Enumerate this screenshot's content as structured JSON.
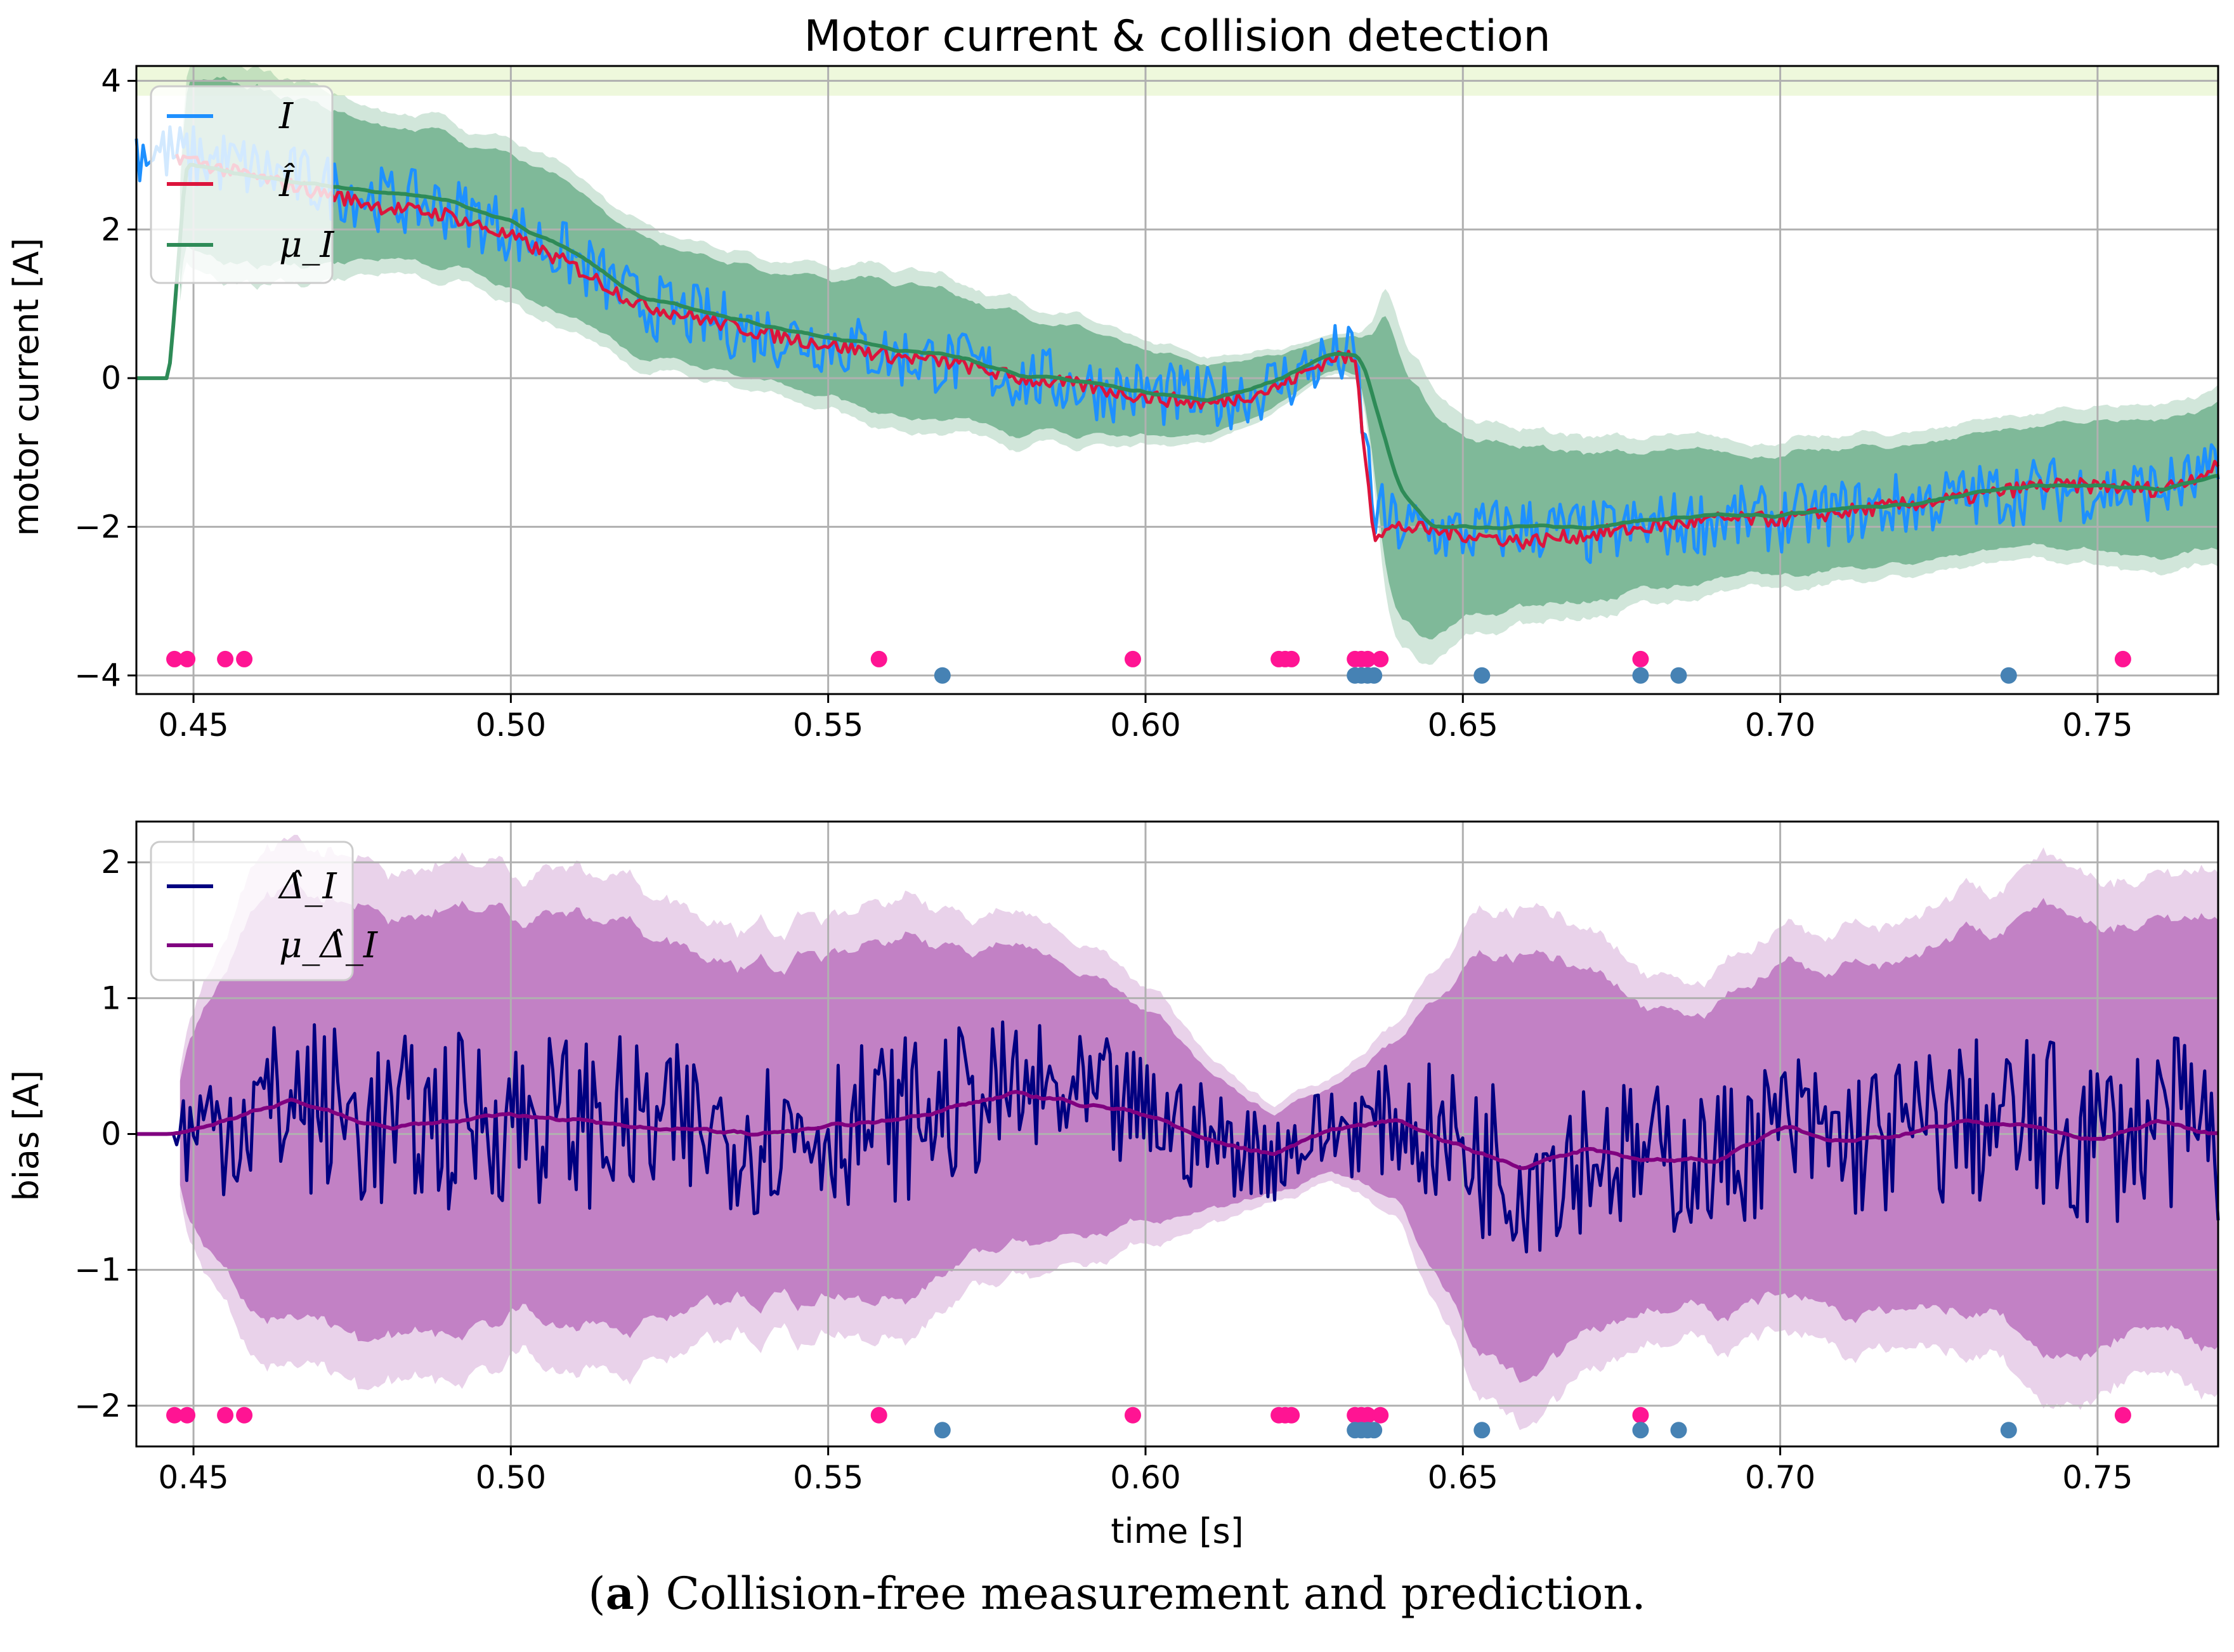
{
  "chart_data": [
    {
      "type": "line",
      "title": "Motor current & collision detection",
      "xlabel": "",
      "ylabel": "motor current [A]",
      "xlim": [
        0.441,
        0.769
      ],
      "ylim": [
        -4.25,
        4.2
      ],
      "xticks": [
        0.45,
        0.5,
        0.55,
        0.6,
        0.65,
        0.7,
        0.75
      ],
      "xtick_labels": [
        "0.45",
        "0.50",
        "0.55",
        "0.60",
        "0.65",
        "0.70",
        "0.75"
      ],
      "yticks": [
        -4,
        -2,
        0,
        2,
        4
      ],
      "ytick_labels": [
        "−4",
        "−2",
        "0",
        "2",
        "4"
      ],
      "grid": true,
      "legend_position": "top-left",
      "threshold_band": {
        "from": 3.8,
        "to": 4.2,
        "color": "#eef8dc"
      },
      "series": [
        {
          "name": "I",
          "color": "#1e90ff",
          "role": "measurement",
          "trend": [
            [
              0.441,
              3.1
            ],
            [
              0.447,
              3.0
            ],
            [
              0.455,
              2.9
            ],
            [
              0.47,
              2.6
            ],
            [
              0.48,
              2.4
            ],
            [
              0.49,
              2.3
            ],
            [
              0.5,
              2.0
            ],
            [
              0.51,
              1.6
            ],
            [
              0.52,
              1.0
            ],
            [
              0.53,
              0.8
            ],
            [
              0.54,
              0.6
            ],
            [
              0.55,
              0.5
            ],
            [
              0.56,
              0.3
            ],
            [
              0.57,
              0.2
            ],
            [
              0.58,
              0.0
            ],
            [
              0.59,
              -0.1
            ],
            [
              0.6,
              -0.2
            ],
            [
              0.61,
              -0.3
            ],
            [
              0.62,
              -0.1
            ],
            [
              0.63,
              0.3
            ],
            [
              0.633,
              0.25
            ],
            [
              0.636,
              -1.8
            ],
            [
              0.64,
              -2.0
            ],
            [
              0.65,
              -2.1
            ],
            [
              0.66,
              -2.0
            ],
            [
              0.67,
              -2.1
            ],
            [
              0.68,
              -2.0
            ],
            [
              0.69,
              -1.9
            ],
            [
              0.7,
              -1.9
            ],
            [
              0.71,
              -1.8
            ],
            [
              0.72,
              -1.7
            ],
            [
              0.73,
              -1.6
            ],
            [
              0.74,
              -1.5
            ],
            [
              0.75,
              -1.5
            ],
            [
              0.76,
              -1.5
            ],
            [
              0.769,
              -1.3
            ]
          ],
          "noise": 0.45
        },
        {
          "name": "Î",
          "color": "#dc143c",
          "role": "estimate",
          "trend": [
            [
              0.447,
              3.0
            ],
            [
              0.455,
              2.8
            ],
            [
              0.47,
              2.5
            ],
            [
              0.48,
              2.3
            ],
            [
              0.49,
              2.2
            ],
            [
              0.5,
              1.9
            ],
            [
              0.51,
              1.5
            ],
            [
              0.52,
              1.0
            ],
            [
              0.53,
              0.8
            ],
            [
              0.54,
              0.6
            ],
            [
              0.55,
              0.45
            ],
            [
              0.56,
              0.3
            ],
            [
              0.57,
              0.2
            ],
            [
              0.58,
              0.0
            ],
            [
              0.59,
              -0.1
            ],
            [
              0.6,
              -0.25
            ],
            [
              0.61,
              -0.35
            ],
            [
              0.62,
              -0.15
            ],
            [
              0.63,
              0.3
            ],
            [
              0.633,
              0.25
            ],
            [
              0.636,
              -2.1
            ],
            [
              0.64,
              -2.0
            ],
            [
              0.65,
              -2.1
            ],
            [
              0.66,
              -2.2
            ],
            [
              0.67,
              -2.1
            ],
            [
              0.68,
              -2.0
            ],
            [
              0.69,
              -1.9
            ],
            [
              0.7,
              -1.9
            ],
            [
              0.71,
              -1.8
            ],
            [
              0.72,
              -1.7
            ],
            [
              0.73,
              -1.6
            ],
            [
              0.74,
              -1.45
            ],
            [
              0.75,
              -1.45
            ],
            [
              0.76,
              -1.5
            ],
            [
              0.769,
              -1.2
            ]
          ],
          "noise": 0.1
        },
        {
          "name": "μ_I",
          "color": "#2e8b57",
          "role": "mean",
          "trend": [
            [
              0.441,
              0.0
            ],
            [
              0.447,
              0.0
            ],
            [
              0.448,
              2.9
            ],
            [
              0.46,
              2.7
            ],
            [
              0.47,
              2.6
            ],
            [
              0.48,
              2.5
            ],
            [
              0.49,
              2.4
            ],
            [
              0.5,
              2.1
            ],
            [
              0.51,
              1.7
            ],
            [
              0.52,
              1.1
            ],
            [
              0.53,
              0.9
            ],
            [
              0.54,
              0.7
            ],
            [
              0.55,
              0.55
            ],
            [
              0.56,
              0.4
            ],
            [
              0.57,
              0.3
            ],
            [
              0.58,
              0.05
            ],
            [
              0.59,
              -0.05
            ],
            [
              0.6,
              -0.2
            ],
            [
              0.61,
              -0.3
            ],
            [
              0.62,
              -0.05
            ],
            [
              0.63,
              0.35
            ],
            [
              0.634,
              0.3
            ],
            [
              0.64,
              -1.5
            ],
            [
              0.645,
              -2.0
            ],
            [
              0.65,
              -2.0
            ],
            [
              0.66,
              -2.0
            ],
            [
              0.67,
              -2.0
            ],
            [
              0.68,
              -1.9
            ],
            [
              0.69,
              -1.85
            ],
            [
              0.7,
              -1.85
            ],
            [
              0.71,
              -1.75
            ],
            [
              0.72,
              -1.7
            ],
            [
              0.73,
              -1.55
            ],
            [
              0.74,
              -1.45
            ],
            [
              0.75,
              -1.45
            ],
            [
              0.76,
              -1.5
            ],
            [
              0.769,
              -1.3
            ]
          ],
          "band_inner_halfwidth": [
            [
              0.447,
              0.0
            ],
            [
              0.448,
              1.2
            ],
            [
              0.46,
              1.2
            ],
            [
              0.48,
              0.9
            ],
            [
              0.5,
              0.9
            ],
            [
              0.52,
              0.8
            ],
            [
              0.54,
              0.75
            ],
            [
              0.56,
              0.9
            ],
            [
              0.58,
              0.8
            ],
            [
              0.6,
              0.6
            ],
            [
              0.62,
              0.35
            ],
            [
              0.63,
              0.2
            ],
            [
              0.635,
              0.3
            ],
            [
              0.638,
              2.0
            ],
            [
              0.642,
              1.6
            ],
            [
              0.65,
              1.2
            ],
            [
              0.66,
              1.1
            ],
            [
              0.68,
              0.9
            ],
            [
              0.7,
              0.8
            ],
            [
              0.72,
              0.8
            ],
            [
              0.74,
              0.8
            ],
            [
              0.76,
              0.9
            ],
            [
              0.769,
              1.0
            ]
          ],
          "band_color": "#2e8b57"
        }
      ],
      "events_collision": [
        0.447,
        0.449,
        0.455,
        0.458,
        0.558,
        0.598,
        0.621,
        0.622,
        0.623,
        0.633,
        0.634,
        0.635,
        0.637,
        0.678,
        0.754
      ],
      "events_detected": [
        0.568,
        0.633,
        0.634,
        0.635,
        0.636,
        0.653,
        0.678,
        0.684,
        0.736
      ],
      "event_colors": {
        "collision": "#ff1493",
        "detected": "#4682b4"
      },
      "event_levels": {
        "collision": -3.78,
        "detected": -4.0
      }
    },
    {
      "type": "line",
      "title": "",
      "xlabel": "time [s]",
      "ylabel": "bias [A]",
      "xlim": [
        0.441,
        0.769
      ],
      "ylim": [
        -2.3,
        2.3
      ],
      "xticks": [
        0.45,
        0.5,
        0.55,
        0.6,
        0.65,
        0.7,
        0.75
      ],
      "xtick_labels": [
        "0.45",
        "0.50",
        "0.55",
        "0.60",
        "0.65",
        "0.70",
        "0.75"
      ],
      "yticks": [
        -2,
        -1,
        0,
        1,
        2
      ],
      "ytick_labels": [
        "−2",
        "−1",
        "0",
        "1",
        "2"
      ],
      "grid": true,
      "legend_position": "top-left",
      "series": [
        {
          "name": "Δ̂_I",
          "color": "#000080",
          "role": "measurement",
          "noise_amplitude": 0.55
        },
        {
          "name": "μ_Δ̂_I",
          "color": "#800080",
          "role": "mean",
          "trend": [
            [
              0.441,
              0.0
            ],
            [
              0.447,
              0.0
            ],
            [
              0.455,
              0.1
            ],
            [
              0.465,
              0.25
            ],
            [
              0.48,
              0.05
            ],
            [
              0.5,
              0.15
            ],
            [
              0.52,
              0.05
            ],
            [
              0.54,
              0.0
            ],
            [
              0.56,
              0.1
            ],
            [
              0.58,
              0.3
            ],
            [
              0.6,
              0.15
            ],
            [
              0.61,
              -0.05
            ],
            [
              0.62,
              -0.15
            ],
            [
              0.63,
              0.05
            ],
            [
              0.64,
              0.1
            ],
            [
              0.65,
              -0.1
            ],
            [
              0.66,
              -0.25
            ],
            [
              0.67,
              -0.1
            ],
            [
              0.68,
              -0.2
            ],
            [
              0.69,
              -0.2
            ],
            [
              0.7,
              0.05
            ],
            [
              0.71,
              -0.05
            ],
            [
              0.72,
              0.0
            ],
            [
              0.73,
              0.1
            ],
            [
              0.74,
              0.05
            ],
            [
              0.75,
              -0.05
            ],
            [
              0.76,
              0.1
            ],
            [
              0.769,
              0.0
            ]
          ],
          "band_inner_halfwidth": [
            [
              0.447,
              0.0
            ],
            [
              0.448,
              0.6
            ],
            [
              0.46,
              1.5
            ],
            [
              0.48,
              1.6
            ],
            [
              0.5,
              1.5
            ],
            [
              0.52,
              1.5
            ],
            [
              0.54,
              1.2
            ],
            [
              0.56,
              1.3
            ],
            [
              0.58,
              1.1
            ],
            [
              0.6,
              0.8
            ],
            [
              0.61,
              0.5
            ],
            [
              0.62,
              0.3
            ],
            [
              0.63,
              0.3
            ],
            [
              0.64,
              0.6
            ],
            [
              0.65,
              1.3
            ],
            [
              0.66,
              1.6
            ],
            [
              0.67,
              1.3
            ],
            [
              0.68,
              1.1
            ],
            [
              0.7,
              1.2
            ],
            [
              0.72,
              1.3
            ],
            [
              0.73,
              1.4
            ],
            [
              0.74,
              1.6
            ],
            [
              0.75,
              1.5
            ],
            [
              0.769,
              1.6
            ]
          ],
          "band_color": "#9b30a0"
        }
      ],
      "events_collision": [
        0.447,
        0.449,
        0.455,
        0.458,
        0.558,
        0.598,
        0.621,
        0.622,
        0.623,
        0.633,
        0.634,
        0.635,
        0.637,
        0.678,
        0.754
      ],
      "events_detected": [
        0.568,
        0.633,
        0.634,
        0.635,
        0.636,
        0.653,
        0.678,
        0.684,
        0.736
      ],
      "event_colors": {
        "collision": "#ff1493",
        "detected": "#4682b4"
      },
      "event_levels": {
        "collision": -2.07,
        "detected": -2.18
      }
    }
  ],
  "caption": {
    "label": "a",
    "open": "(",
    "close": ") ",
    "text": "Collision-free measurement and prediction."
  }
}
